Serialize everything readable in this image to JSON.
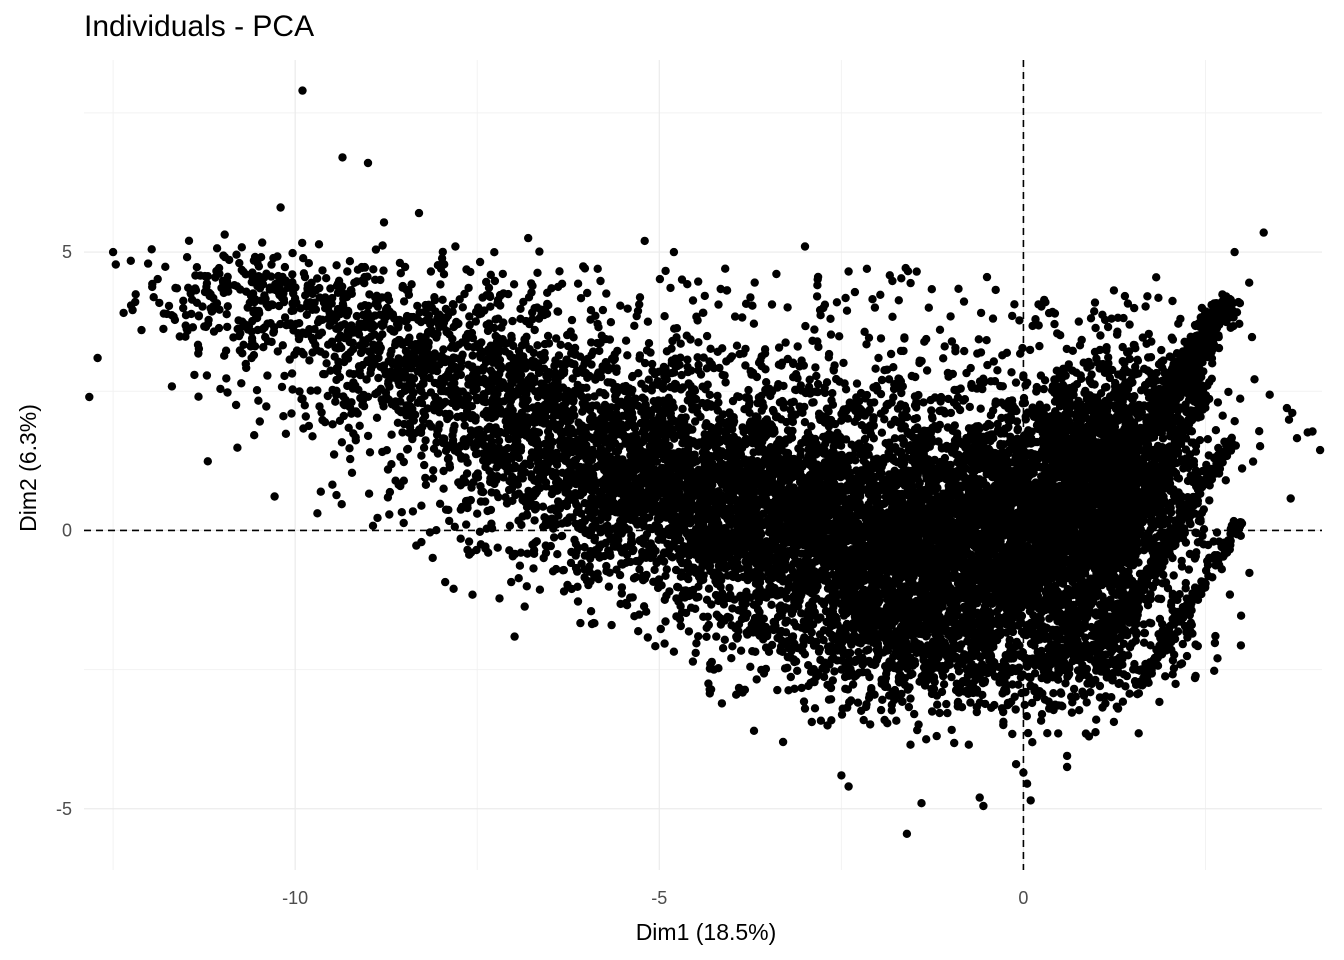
{
  "chart_data": {
    "type": "scatter",
    "title": "Individuals - PCA",
    "xlabel": "Dim1 (18.5%)",
    "ylabel": "Dim2 (6.3%)",
    "xlim": [
      -12.9,
      4.1
    ],
    "ylim": [
      -6.1,
      8.45
    ],
    "x_ticks": [
      -10,
      -5,
      0
    ],
    "y_ticks": [
      -5,
      0,
      5
    ],
    "x_tick_labels": [
      "-10",
      "-5",
      "0"
    ],
    "y_tick_labels": [
      "-5",
      "0",
      "5"
    ],
    "grid": true,
    "reference_lines": {
      "x": 0,
      "y": 0,
      "style": "dashed"
    },
    "point_color": "#000000",
    "outlier_points": [
      [
        -9.9,
        7.9
      ],
      [
        -12.5,
        5.0
      ],
      [
        -11.97,
        5.05
      ],
      [
        -9.35,
        6.7
      ],
      [
        -9.0,
        6.6
      ],
      [
        -10.2,
        5.8
      ],
      [
        -8.3,
        5.7
      ],
      [
        -7.8,
        5.1
      ],
      [
        -6.8,
        5.25
      ],
      [
        -5.2,
        5.2
      ],
      [
        -4.8,
        5.0
      ],
      [
        -3.0,
        5.1
      ],
      [
        3.3,
        5.35
      ],
      [
        2.9,
        5.0
      ],
      [
        3.1,
        4.45
      ],
      [
        -2.4,
        4.65
      ],
      [
        -2.15,
        4.7
      ],
      [
        -0.5,
        4.55
      ],
      [
        -1.3,
        4.0
      ],
      [
        -9.0,
        2.4
      ],
      [
        -10.05,
        2.1
      ],
      [
        -7.7,
        0.85
      ],
      [
        -7.5,
        0.3
      ],
      [
        -7.45,
        -0.25
      ],
      [
        -7.35,
        -0.4
      ],
      [
        -6.9,
        -0.4
      ],
      [
        -4.5,
        -2.2
      ],
      [
        -4.3,
        -2.4
      ],
      [
        -4.25,
        -2.5
      ],
      [
        -3.7,
        -3.6
      ],
      [
        -3.3,
        -3.8
      ],
      [
        -3.0,
        -3.2
      ],
      [
        -2.5,
        -4.4
      ],
      [
        -2.4,
        -4.6
      ],
      [
        -1.6,
        -5.45
      ],
      [
        -1.4,
        -4.9
      ],
      [
        -0.6,
        -4.8
      ],
      [
        -0.55,
        -4.95
      ],
      [
        0.1,
        -4.85
      ],
      [
        0.05,
        -4.55
      ],
      [
        0.0,
        -4.35
      ],
      [
        -0.1,
        -4.2
      ],
      [
        -0.75,
        -3.85
      ],
      [
        -1.55,
        -3.85
      ],
      [
        0.6,
        -4.05
      ],
      [
        0.6,
        -4.25
      ],
      [
        -1.5,
        -3.3
      ],
      [
        -0.9,
        -3.1
      ],
      [
        1.0,
        -3.4
      ],
      [
        0.9,
        -3.7
      ],
      [
        1.3,
        -3.2
      ],
      [
        1.05,
        -3.0
      ],
      [
        1.4,
        -2.8
      ],
      [
        2.3,
        -1.7
      ]
    ],
    "density_regions": [
      {
        "cx": -10.4,
        "cy": 4.15,
        "sx": 0.9,
        "sy": 0.45,
        "n": 260,
        "tilt": -0.2
      },
      {
        "cx": -8.3,
        "cy": 3.0,
        "sx": 1.1,
        "sy": 0.75,
        "n": 650,
        "tilt": -0.45
      },
      {
        "cx": -6.3,
        "cy": 1.55,
        "sx": 1.2,
        "sy": 0.95,
        "n": 1150,
        "tilt": -0.35
      },
      {
        "cx": -4.3,
        "cy": 0.45,
        "sx": 1.2,
        "sy": 0.95,
        "n": 1700,
        "tilt": -0.2
      },
      {
        "cx": -2.2,
        "cy": -0.1,
        "sx": 1.3,
        "sy": 1.0,
        "n": 2300,
        "tilt": -0.05
      },
      {
        "cx": -0.2,
        "cy": 0.0,
        "sx": 1.0,
        "sy": 1.05,
        "n": 2400,
        "tilt": 0.25
      },
      {
        "cx": 1.1,
        "cy": 0.9,
        "sx": 0.6,
        "sy": 1.05,
        "n": 1700,
        "tilt": 0.7
      },
      {
        "cx": -3.0,
        "cy": 2.2,
        "sx": 3.2,
        "sy": 0.75,
        "n": 550,
        "tilt": 0.0
      },
      {
        "cx": -1.6,
        "cy": -1.9,
        "sx": 0.9,
        "sy": 0.55,
        "n": 550,
        "tilt": 0.0
      },
      {
        "cx": -0.3,
        "cy": -2.6,
        "sx": 1.2,
        "sy": 0.55,
        "n": 220,
        "tilt": 0.3
      },
      {
        "cx": 1.2,
        "cy": -1.9,
        "sx": 0.6,
        "sy": 0.5,
        "n": 220,
        "tilt": 0.5
      }
    ],
    "diagonal_streaks": [
      {
        "x0": 1.8,
        "y0": 1.9,
        "x1": 2.75,
        "y1": 4.05,
        "n": 420,
        "jitter": 0.12
      },
      {
        "x0": 0.3,
        "y0": -2.6,
        "x1": 2.5,
        "y1": 2.5,
        "n": 340,
        "jitter": 0.07
      },
      {
        "x0": 1.0,
        "y0": -2.3,
        "x1": 2.85,
        "y1": 1.6,
        "n": 280,
        "jitter": 0.06
      },
      {
        "x0": 1.6,
        "y0": -2.8,
        "x1": 3.0,
        "y1": 0.2,
        "n": 160,
        "jitter": 0.05
      }
    ],
    "scatter_points": [
      {
        "x0": -11.6,
        "x1": -6.5,
        "y0": 2.3,
        "y1": 5.2,
        "n": 120
      },
      {
        "x0": -7.5,
        "x1": -1.0,
        "y0": 2.5,
        "y1": 4.8,
        "n": 150
      },
      {
        "x0": -1.0,
        "x1": 2.5,
        "y0": 2.5,
        "y1": 4.4,
        "n": 60
      },
      {
        "x0": -4.5,
        "x1": 1.5,
        "y0": -3.2,
        "y1": -1.4,
        "n": 160
      }
    ]
  }
}
